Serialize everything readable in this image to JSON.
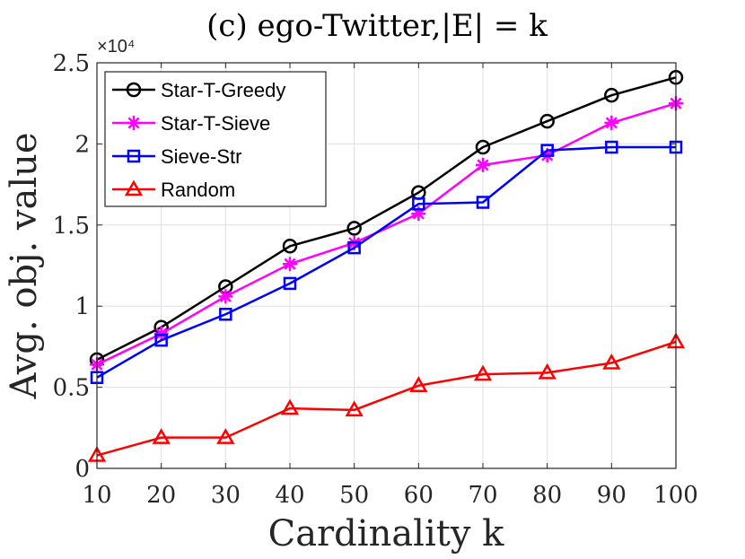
{
  "chart_data": {
    "type": "line",
    "title": "(c) ego-Twitter,|E| = k",
    "xlabel": "Cardinality k",
    "ylabel": "Avg. obj. value",
    "y_multiplier": "×10⁴",
    "x": [
      10,
      20,
      30,
      40,
      50,
      60,
      70,
      80,
      90,
      100
    ],
    "xlim": [
      10,
      100
    ],
    "ylim": [
      0,
      2.5
    ],
    "xticks": [
      "10",
      "20",
      "30",
      "40",
      "50",
      "60",
      "70",
      "80",
      "90",
      "100"
    ],
    "yticks": [
      "0",
      "0.5",
      "1",
      "1.5",
      "2",
      "2.5"
    ],
    "yticks_values": [
      0,
      0.5,
      1,
      1.5,
      2,
      2.5
    ],
    "grid": true,
    "legend_position": "top-left",
    "series": [
      {
        "name": "Star-T-Greedy",
        "color": "#000000",
        "marker": "circle",
        "values": [
          0.67,
          0.87,
          1.12,
          1.37,
          1.48,
          1.7,
          1.98,
          2.14,
          2.3,
          2.41
        ]
      },
      {
        "name": "Star-T-Sieve",
        "color": "#ff00ff",
        "marker": "asterisk",
        "values": [
          0.64,
          0.83,
          1.06,
          1.26,
          1.39,
          1.57,
          1.87,
          1.93,
          2.13,
          2.25
        ]
      },
      {
        "name": "Sieve-Str",
        "color": "#0000ff",
        "marker": "square",
        "values": [
          0.56,
          0.79,
          0.95,
          1.14,
          1.36,
          1.63,
          1.64,
          1.96,
          1.98,
          1.98
        ]
      },
      {
        "name": "Random",
        "color": "#ff0000",
        "marker": "triangle",
        "values": [
          0.08,
          0.19,
          0.19,
          0.37,
          0.36,
          0.51,
          0.58,
          0.59,
          0.65,
          0.78
        ]
      }
    ]
  }
}
